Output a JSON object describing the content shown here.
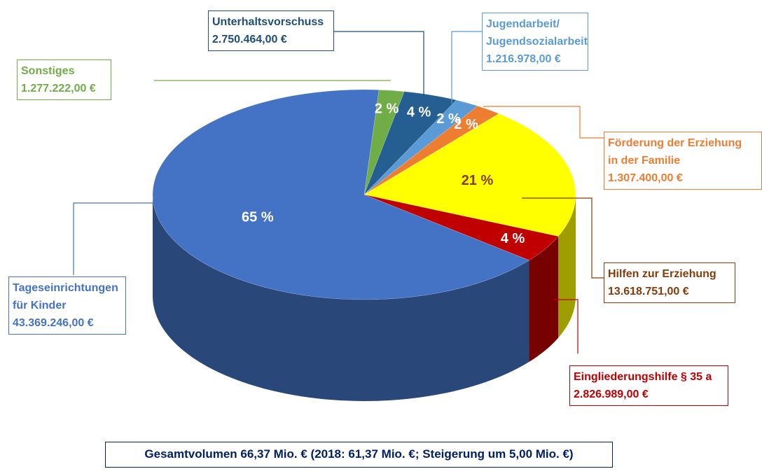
{
  "chart_data": {
    "type": "pie3d",
    "categories": [
      "Sonstiges",
      "Unterhaltsvorschuss",
      "Jugendarbeit/\nJugendsozialarbeit",
      "Förderung der Erziehung\nin der Familie",
      "Hilfen zur Erziehung",
      "Eingliederungshilfe § 35 a",
      "Tageseinrichtungen\nfür Kinder"
    ],
    "values": [
      1277222,
      2750464,
      1216978,
      1307400,
      13618751,
      2826989,
      43369246
    ],
    "value_labels": [
      "1.277.222,00 €",
      "2.750.464,00 €",
      "1.216.978,00 €",
      "1.307.400,00 €",
      "13.618.751,00 €",
      "2.826.989,00 €",
      "43.369.246,00 €"
    ],
    "percents": [
      2,
      4,
      2,
      2,
      21,
      4,
      65
    ],
    "percent_labels": [
      "2 %",
      "4 %",
      "2 %",
      "2 %",
      "21 %",
      "4 %",
      "65 %"
    ],
    "colors": [
      "#70ad47",
      "#255e91",
      "#5b9bd5",
      "#ed7d31",
      "#ffff00",
      "#c00000",
      "#4472c4"
    ],
    "label_colors": [
      "#70ad47",
      "#1f4e79",
      "#5b9bd5",
      "#ed7d31",
      "#843c0c",
      "#c00000",
      "#4472c4"
    ],
    "percent_label_colors": [
      "#ffffff",
      "#ffffff",
      "#ffffff",
      "#ffffff",
      "#843c0c",
      "#ffffff",
      "#ffffff"
    ],
    "footer": "Gesamtvolumen 66,37 Mio. € (2018: 61,37 Mio. €; Steigerung um 5,00 Mio. €)"
  }
}
